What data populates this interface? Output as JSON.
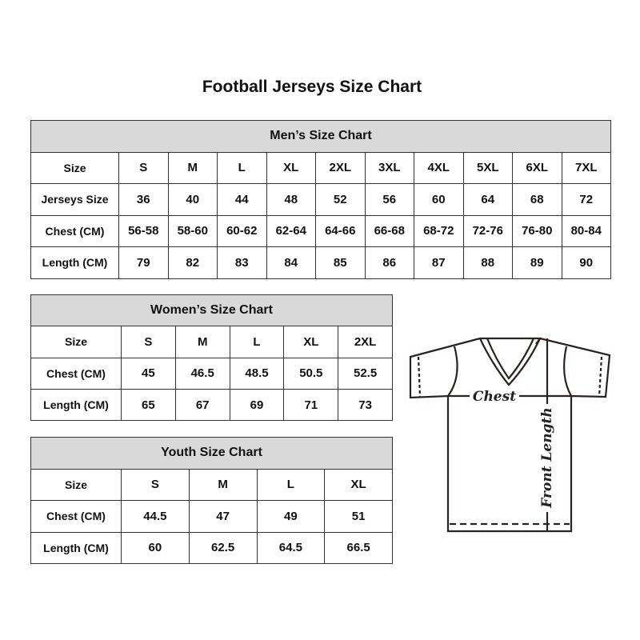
{
  "title": "Football Jerseys Size Chart",
  "men": {
    "heading": "Men’s Size Chart",
    "rows": [
      {
        "label": "Size",
        "values": [
          "S",
          "M",
          "L",
          "XL",
          "2XL",
          "3XL",
          "4XL",
          "5XL",
          "6XL",
          "7XL"
        ]
      },
      {
        "label": "Jerseys Size",
        "values": [
          "36",
          "40",
          "44",
          "48",
          "52",
          "56",
          "60",
          "64",
          "68",
          "72"
        ]
      },
      {
        "label": "Chest (CM)",
        "values": [
          "56-58",
          "58-60",
          "60-62",
          "62-64",
          "64-66",
          "66-68",
          "68-72",
          "72-76",
          "76-80",
          "80-84"
        ]
      },
      {
        "label": "Length (CM)",
        "values": [
          "79",
          "82",
          "83",
          "84",
          "85",
          "86",
          "87",
          "88",
          "89",
          "90"
        ]
      }
    ]
  },
  "women": {
    "heading": "Women’s Size Chart",
    "rows": [
      {
        "label": "Size",
        "values": [
          "S",
          "M",
          "L",
          "XL",
          "2XL"
        ]
      },
      {
        "label": "Chest (CM)",
        "values": [
          "45",
          "46.5",
          "48.5",
          "50.5",
          "52.5"
        ]
      },
      {
        "label": "Length (CM)",
        "values": [
          "65",
          "67",
          "69",
          "71",
          "73"
        ]
      }
    ]
  },
  "youth": {
    "heading": "Youth Size Chart",
    "rows": [
      {
        "label": "Size",
        "values": [
          "S",
          "M",
          "L",
          "XL"
        ]
      },
      {
        "label": "Chest (CM)",
        "values": [
          "44.5",
          "47",
          "49",
          "51"
        ]
      },
      {
        "label": "Length (CM)",
        "values": [
          "60",
          "62.5",
          "64.5",
          "66.5"
        ]
      }
    ]
  },
  "diagram": {
    "chest_label": "Chest",
    "length_label": "Front Length"
  },
  "colors": {
    "header_bg": "#d9d9d9",
    "border": "#333333"
  }
}
